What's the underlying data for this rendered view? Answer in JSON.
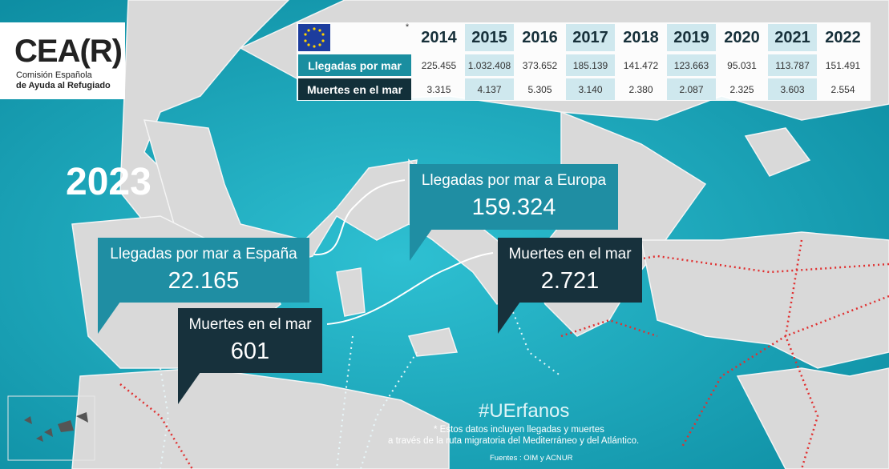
{
  "logo": {
    "mark": "CEA(R)",
    "line1": "Comisión Española",
    "line2": "de Ayuda al Refugiado"
  },
  "table": {
    "asterisk": "*",
    "years": [
      "2014",
      "2015",
      "2016",
      "2017",
      "2018",
      "2019",
      "2020",
      "2021",
      "2022"
    ],
    "rows": [
      {
        "label": "Llegadas por mar",
        "values": [
          "225.455",
          "1.032.408",
          "373.652",
          "185.139",
          "141.472",
          "123.663",
          "95.031",
          "113.787",
          "151.491"
        ]
      },
      {
        "label": "Muertes en el mar",
        "values": [
          "3.315",
          "4.137",
          "5.305",
          "3.140",
          "2.380",
          "2.087",
          "2.325",
          "3.603",
          "2.554"
        ]
      }
    ]
  },
  "year": "2023",
  "callouts": [
    {
      "title": "Llegadas por mar a España",
      "value": "22.165"
    },
    {
      "title": "Muertes en el mar",
      "value": "601"
    },
    {
      "title": "Llegadas por mar a Europa",
      "value": "159.324"
    },
    {
      "title": "Muertes en el mar",
      "value": "2.721"
    }
  ],
  "hashtag": "#UErfanos",
  "note": [
    "* Estos datos incluyen  llegadas y muertes",
    "a través de la ruta migratoria del Mediterráneo y del Atlántico."
  ],
  "sources": "Fuentes : OIM y ACNUR"
}
